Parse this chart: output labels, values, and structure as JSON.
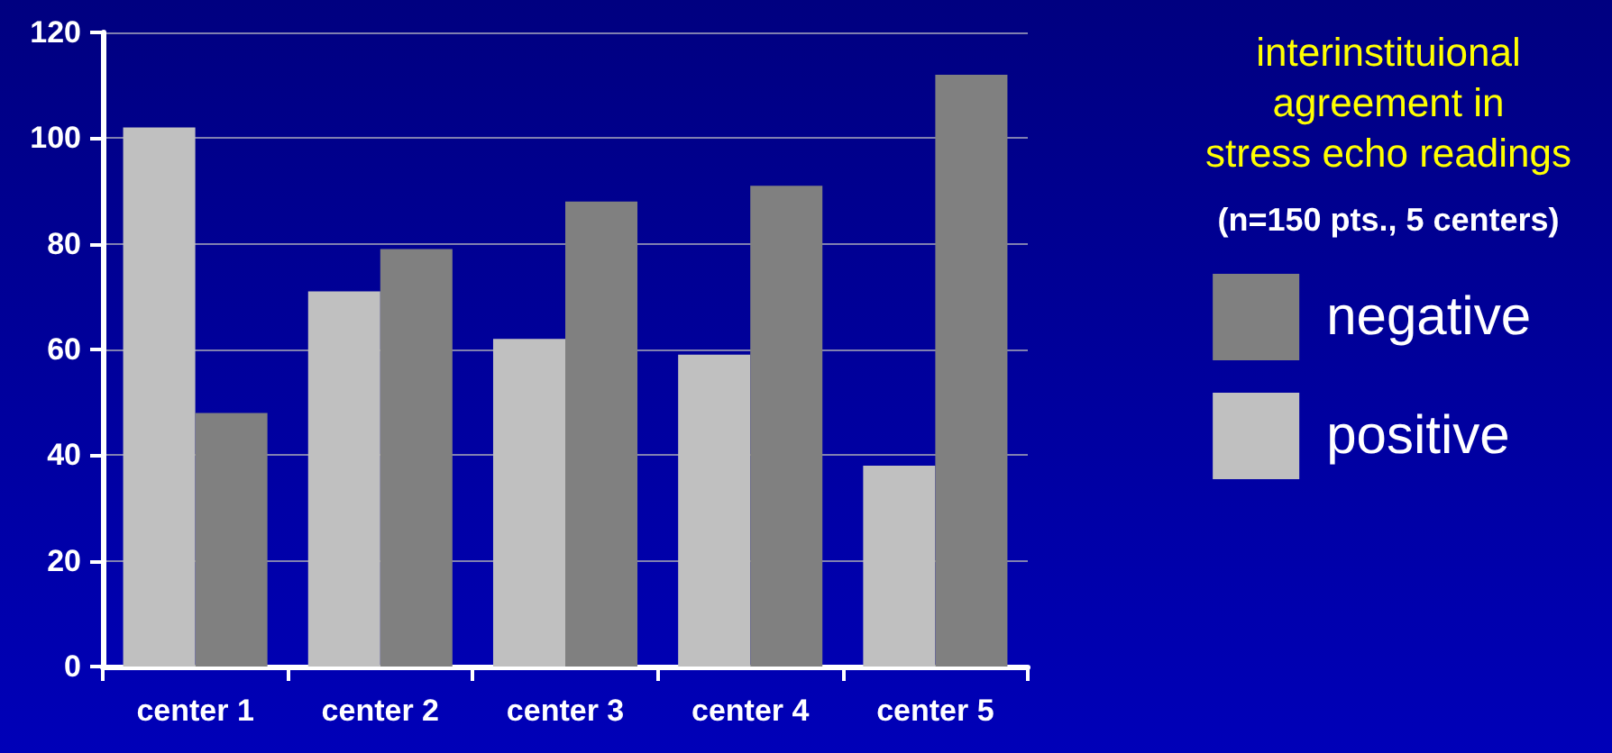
{
  "chart_data": {
    "type": "bar",
    "title": "interinstituional\nagreement in\nstress echo readings",
    "subtitle": "(n=150 pts., 5 centers)",
    "categories": [
      "center 1",
      "center 2",
      "center 3",
      "center 4",
      "center 5"
    ],
    "series": [
      {
        "name": "positive",
        "color": "#c0c0c0",
        "values": [
          102,
          71,
          62,
          59,
          38
        ]
      },
      {
        "name": "negative",
        "color": "#808080",
        "values": [
          48,
          79,
          88,
          91,
          112
        ]
      }
    ],
    "ylim": [
      0,
      120
    ],
    "yticks": [
      0,
      20,
      40,
      60,
      80,
      100,
      120
    ],
    "grid": "y",
    "legend": "right"
  }
}
